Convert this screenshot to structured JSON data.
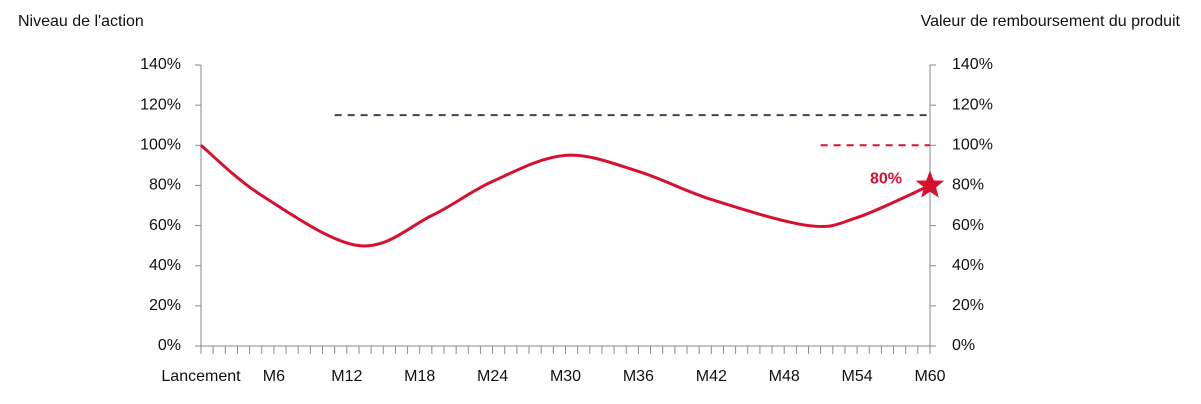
{
  "chart_data": {
    "type": "line",
    "y_axis_title": "Niveau de l'action",
    "y2_axis_title": "Valeur de remboursement du produit",
    "xlim": [
      0,
      60
    ],
    "xticks": [
      {
        "value": 0,
        "label": "Lancement"
      },
      {
        "value": 1,
        "label": null
      },
      {
        "value": 2,
        "label": null
      },
      {
        "value": 3,
        "label": null
      },
      {
        "value": 4,
        "label": null
      },
      {
        "value": 5,
        "label": null
      },
      {
        "value": 6,
        "label": "M6"
      },
      {
        "value": 7,
        "label": null
      },
      {
        "value": 8,
        "label": null
      },
      {
        "value": 9,
        "label": null
      },
      {
        "value": 10,
        "label": null
      },
      {
        "value": 11,
        "label": null
      },
      {
        "value": 12,
        "label": "M12"
      },
      {
        "value": 13,
        "label": null
      },
      {
        "value": 14,
        "label": null
      },
      {
        "value": 15,
        "label": null
      },
      {
        "value": 16,
        "label": null
      },
      {
        "value": 17,
        "label": null
      },
      {
        "value": 18,
        "label": "M18"
      },
      {
        "value": 19,
        "label": null
      },
      {
        "value": 20,
        "label": null
      },
      {
        "value": 21,
        "label": null
      },
      {
        "value": 22,
        "label": null
      },
      {
        "value": 23,
        "label": null
      },
      {
        "value": 24,
        "label": "M24"
      },
      {
        "value": 25,
        "label": null
      },
      {
        "value": 26,
        "label": null
      },
      {
        "value": 27,
        "label": null
      },
      {
        "value": 28,
        "label": null
      },
      {
        "value": 29,
        "label": null
      },
      {
        "value": 30,
        "label": "M30"
      },
      {
        "value": 31,
        "label": null
      },
      {
        "value": 32,
        "label": null
      },
      {
        "value": 33,
        "label": null
      },
      {
        "value": 34,
        "label": null
      },
      {
        "value": 35,
        "label": null
      },
      {
        "value": 36,
        "label": "M36"
      },
      {
        "value": 37,
        "label": null
      },
      {
        "value": 38,
        "label": null
      },
      {
        "value": 39,
        "label": null
      },
      {
        "value": 40,
        "label": null
      },
      {
        "value": 41,
        "label": null
      },
      {
        "value": 42,
        "label": "M42"
      },
      {
        "value": 43,
        "label": null
      },
      {
        "value": 44,
        "label": null
      },
      {
        "value": 45,
        "label": null
      },
      {
        "value": 46,
        "label": null
      },
      {
        "value": 47,
        "label": null
      },
      {
        "value": 48,
        "label": "M48"
      },
      {
        "value": 49,
        "label": null
      },
      {
        "value": 50,
        "label": null
      },
      {
        "value": 51,
        "label": null
      },
      {
        "value": 52,
        "label": null
      },
      {
        "value": 53,
        "label": null
      },
      {
        "value": 54,
        "label": "M54"
      },
      {
        "value": 55,
        "label": null
      },
      {
        "value": 56,
        "label": null
      },
      {
        "value": 57,
        "label": null
      },
      {
        "value": 58,
        "label": null
      },
      {
        "value": 59,
        "label": null
      },
      {
        "value": 60,
        "label": "M60"
      }
    ],
    "ylim": [
      0,
      140
    ],
    "yticks": [
      {
        "value": 0,
        "label": "0%"
      },
      {
        "value": 20,
        "label": "20%"
      },
      {
        "value": 40,
        "label": "40%"
      },
      {
        "value": 60,
        "label": "60%"
      },
      {
        "value": 80,
        "label": "80%"
      },
      {
        "value": 100,
        "label": "100%"
      },
      {
        "value": 120,
        "label": "120%"
      },
      {
        "value": 140,
        "label": "140%"
      }
    ],
    "y2lim": [
      0,
      140
    ],
    "y2ticks": [
      {
        "value": 0,
        "label": "0%"
      },
      {
        "value": 20,
        "label": "20%"
      },
      {
        "value": 40,
        "label": "40%"
      },
      {
        "value": 60,
        "label": "60%"
      },
      {
        "value": 80,
        "label": "80%"
      },
      {
        "value": 100,
        "label": "100%"
      },
      {
        "value": 120,
        "label": "120%"
      },
      {
        "value": 140,
        "label": "140%"
      }
    ],
    "series": [
      {
        "color": "#d7102e",
        "style": "solid",
        "marker_last": "star",
        "x": [
          0,
          5,
          13,
          19,
          24,
          30,
          36,
          42,
          50,
          54,
          60
        ],
        "values": [
          100,
          75,
          50,
          65,
          82,
          95,
          87,
          73,
          60,
          64,
          80
        ],
        "value_labels": [
          null,
          null,
          null,
          null,
          null,
          null,
          null,
          null,
          null,
          null,
          "80%"
        ]
      },
      {
        "color": "#3f425c",
        "style": "dashed",
        "x": [
          11,
          60
        ],
        "values": [
          115,
          115
        ]
      },
      {
        "color": "#d7102e",
        "style": "dashed",
        "x": [
          51,
          60
        ],
        "values": [
          100,
          100
        ]
      }
    ]
  }
}
